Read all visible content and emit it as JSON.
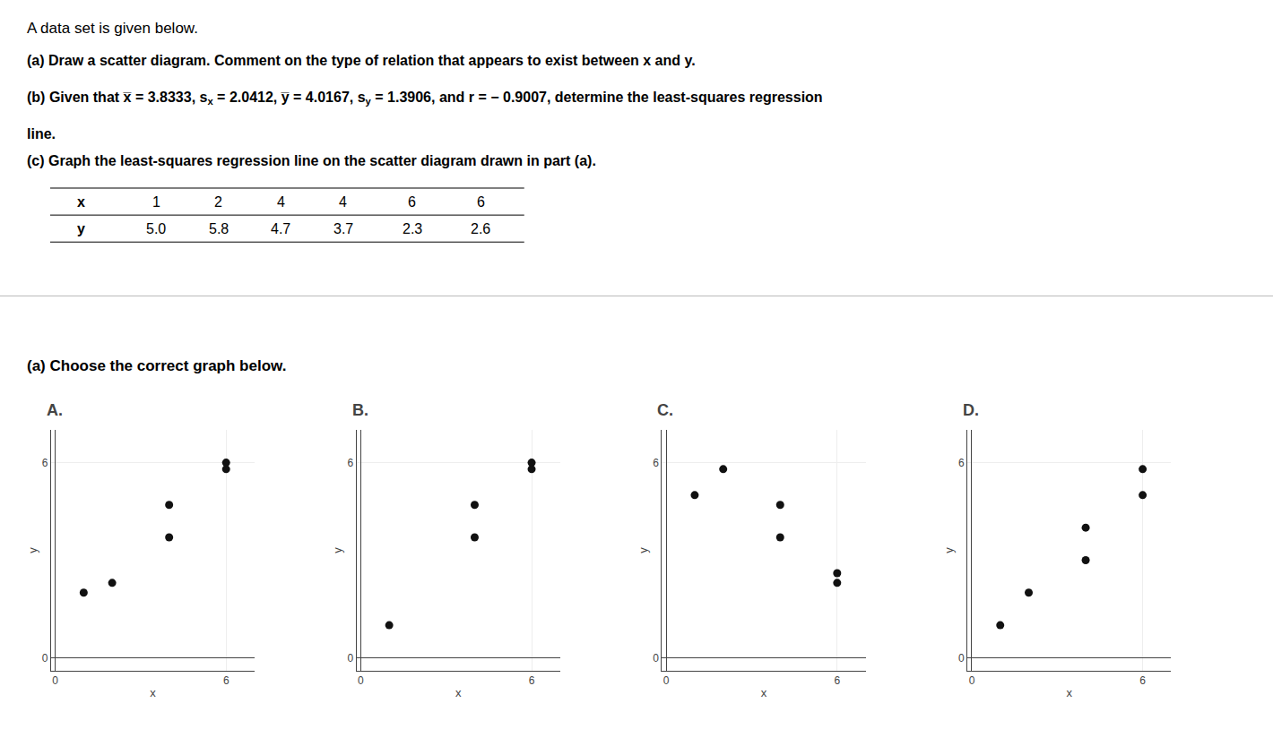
{
  "title": "A data set is given below.",
  "annotations": [
    {
      "text": "(a) Draw a scatter diagram. Comment on the type of relation that appears to exist between x and y."
    },
    {
      "segments": [
        "(b) Given that x̅ = 3.8333, s",
        "x",
        " = 2.0412, y̅ = 4.0167, s",
        "y",
        " = 1.3906, and r = − 0.9007, determine the least-squares regression"
      ]
    },
    {
      "text": "line."
    },
    {
      "text": "(c) Graph the least-squares regression line on the scatter diagram drawn in part (a)."
    },
    {
      "row": "x",
      "cells": [
        1,
        2,
        4,
        4,
        6,
        6
      ]
    },
    {
      "row": "y",
      "cells": [
        "5.0",
        "5.8",
        "4.7",
        "3.7",
        "2.3",
        "2.6"
      ]
    },
    {
      "text": "(a) Choose the correct graph below."
    }
  ],
  "chart_data": [
    {
      "type": "scatter",
      "title": "A.",
      "x": [
        1,
        2,
        4,
        4,
        6,
        6
      ],
      "values": [
        2.0,
        2.3,
        3.7,
        4.7,
        5.8,
        6.0
      ],
      "xlabel": "x",
      "ylabel": "y",
      "xlim": [
        -0.15,
        7.0
      ],
      "ylim": [
        -0.4,
        7.0
      ],
      "xticks": [
        0,
        6
      ],
      "yticks": [
        0,
        6
      ],
      "grid": true,
      "color": "#111111"
    },
    {
      "type": "scatter",
      "title": "B.",
      "x": [
        6,
        6,
        4,
        4,
        1
      ],
      "values": [
        5.8,
        6.0,
        3.7,
        4.7,
        1.0
      ],
      "xlabel": "x",
      "ylabel": "y",
      "xlim": [
        -0.15,
        7.0
      ],
      "ylim": [
        -0.4,
        7.0
      ],
      "xticks": [
        0,
        6
      ],
      "yticks": [
        0,
        6
      ],
      "grid": true,
      "color": "#111111"
    },
    {
      "type": "scatter",
      "title": "C.",
      "x": [
        1,
        2,
        4,
        4,
        6,
        6
      ],
      "values": [
        5.0,
        5.8,
        4.7,
        3.7,
        2.3,
        2.6
      ],
      "xlabel": "x",
      "ylabel": "y",
      "xlim": [
        -0.15,
        7.0
      ],
      "ylim": [
        -0.4,
        7.0
      ],
      "xticks": [
        0,
        6
      ],
      "yticks": [
        0,
        6
      ],
      "grid": true,
      "color": "#111111"
    },
    {
      "type": "scatter",
      "title": "D.",
      "x": [
        1,
        2,
        4,
        4,
        6,
        6
      ],
      "values": [
        1.0,
        2.0,
        3.0,
        4.0,
        5.0,
        5.8
      ],
      "xlabel": "x",
      "ylabel": "y",
      "xlim": [
        -0.15,
        7.0
      ],
      "ylim": [
        -0.4,
        7.0
      ],
      "xticks": [
        0,
        6
      ],
      "yticks": [
        0,
        6
      ],
      "grid": true,
      "color": "#111111"
    }
  ]
}
